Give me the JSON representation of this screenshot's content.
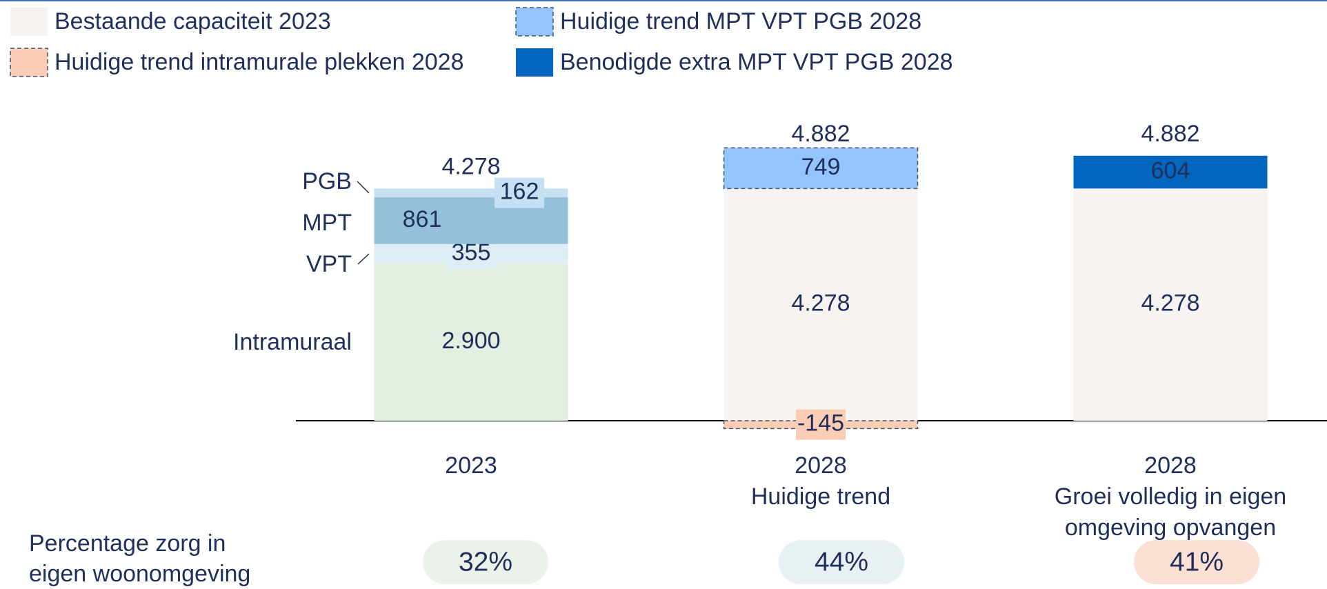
{
  "chart_data": {
    "type": "stacked_bar",
    "categories": [
      [
        "2023"
      ],
      [
        "2028",
        "Huidige trend"
      ],
      [
        "2028",
        "Groei volledig in eigen",
        "omgeving opvangen"
      ]
    ],
    "breakdown_series": [
      {
        "name": "Intramuraal",
        "color": "#e2eedf",
        "values": [
          2900,
          null,
          null
        ],
        "value_labels": [
          "2.900",
          null,
          null
        ]
      },
      {
        "name": "VPT",
        "color": "#ddedf5",
        "values": [
          355,
          null,
          null
        ]
      },
      {
        "name": "MPT",
        "color": "#94c1d9",
        "values": [
          861,
          null,
          null
        ]
      },
      {
        "name": "PGB",
        "color": "#c5e0f3",
        "values": [
          162,
          null,
          null
        ]
      }
    ],
    "series": [
      {
        "name": "Bestaande capaciteit 2023",
        "color": "#f7f3f1",
        "dashed": false,
        "values": [
          null,
          4278,
          4278
        ],
        "value_labels": [
          null,
          "4.278",
          "4.278"
        ]
      },
      {
        "name": "Huidige trend intramurale plekken 2028",
        "color": "#fbcdb5",
        "dashed": true,
        "values": [
          null,
          -145,
          null
        ]
      },
      {
        "name": "Huidige trend MPT VPT PGB 2028",
        "color": "#93c4fb",
        "dashed": true,
        "values": [
          null,
          749,
          null
        ]
      },
      {
        "name": "Benodigde extra MPT VPT PGB 2028",
        "color": "#0066bf",
        "dashed": false,
        "label_color": "#ffffff",
        "values": [
          null,
          null,
          604
        ]
      }
    ],
    "totals": {
      "values": [
        4278,
        4882,
        4882
      ],
      "value_labels": [
        "4.278",
        "4.882",
        "4.882"
      ]
    },
    "footer": {
      "label": [
        "Percentage zorg in",
        "eigen woonomgeving"
      ],
      "values": [
        32,
        44,
        41
      ],
      "value_labels": [
        "32%",
        "44%",
        "41%"
      ],
      "colors": [
        "#ebf2ea",
        "#e8f0f4",
        "#fde0d4"
      ]
    }
  }
}
